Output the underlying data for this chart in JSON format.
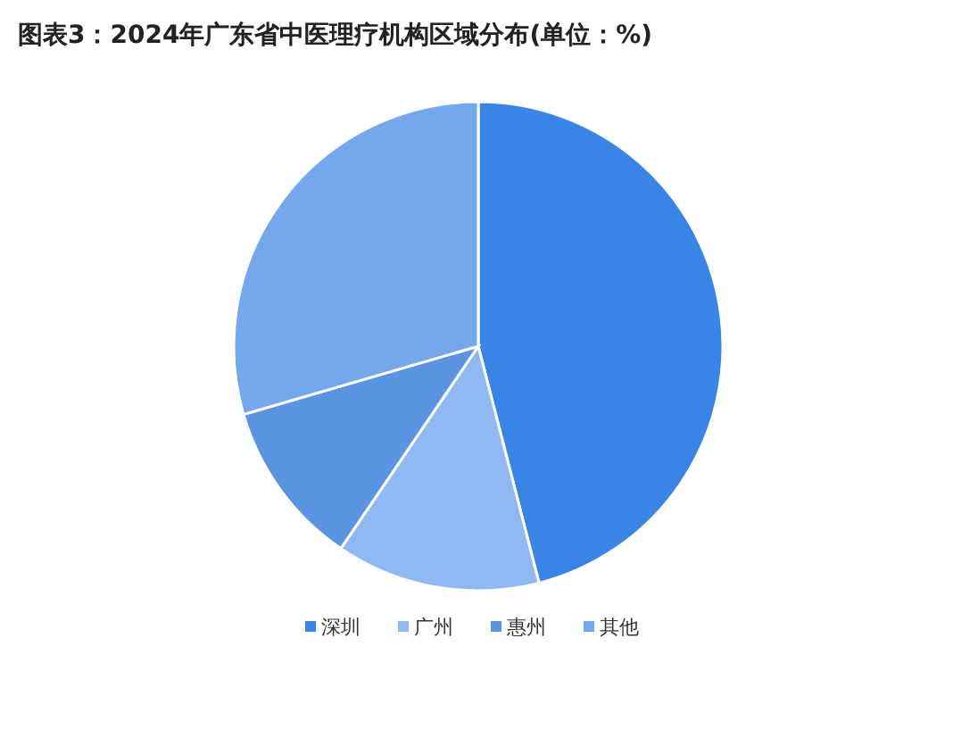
{
  "chart_data": {
    "type": "pie",
    "title": "图表3：2024年广东省中医理疗机构区域分布(单位：%)",
    "categories": [
      "深圳",
      "广州",
      "惠州",
      "其他"
    ],
    "values": [
      46,
      13.5,
      11,
      29.5
    ],
    "colors": [
      "#3a84e6",
      "#90b9f4",
      "#5b95e2",
      "#74a7ec"
    ],
    "legend": "bottom"
  }
}
